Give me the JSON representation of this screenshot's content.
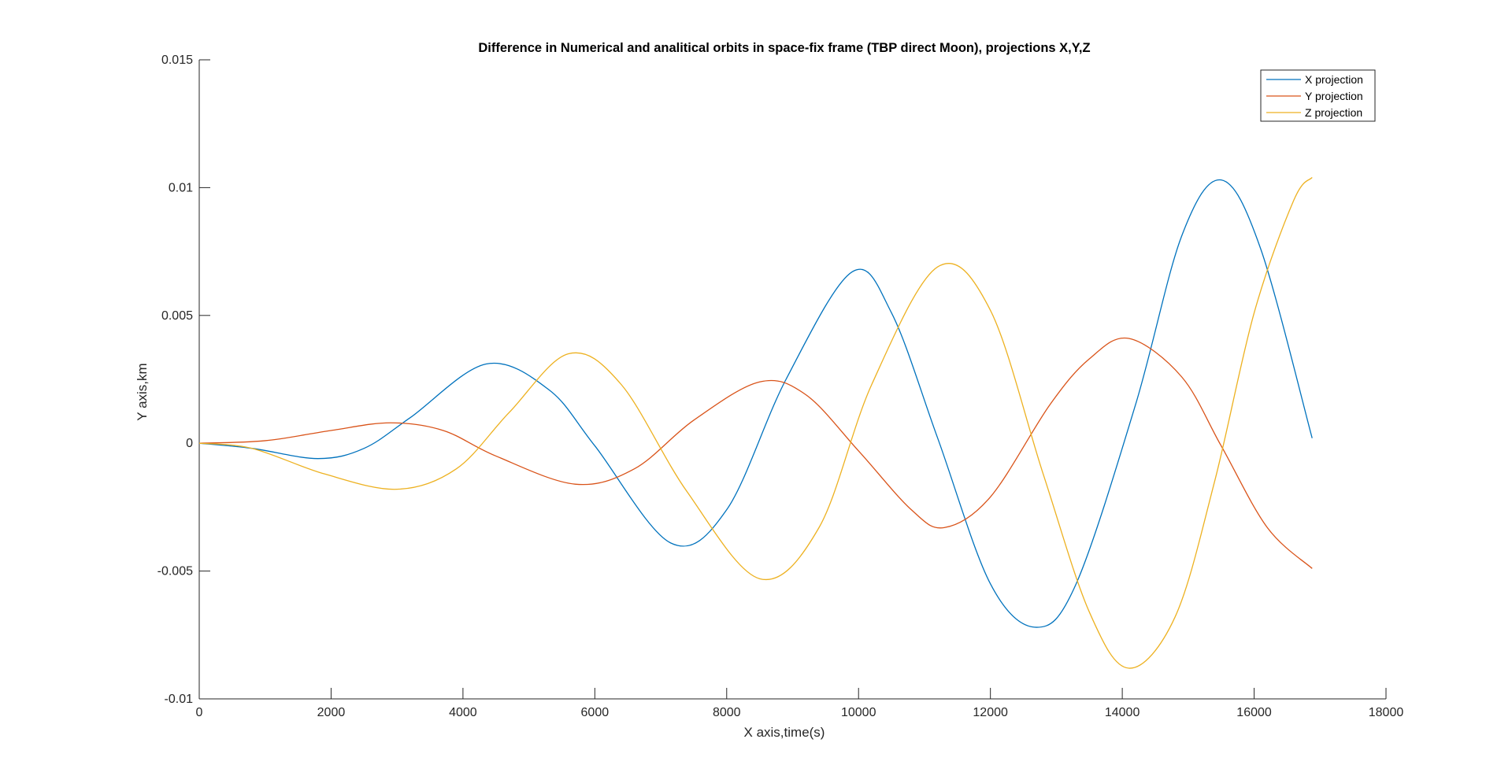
{
  "chart_data": {
    "type": "line",
    "title": "Difference in Numerical and analitical orbits in space-fix frame (TBP direct Moon), projections X,Y,Z",
    "xlabel": "X axis,time(s)",
    "ylabel": "Y axis,km",
    "xlim": [
      0,
      18000
    ],
    "ylim": [
      -0.01,
      0.015
    ],
    "xticks": [
      0,
      2000,
      4000,
      6000,
      8000,
      10000,
      12000,
      14000,
      16000,
      18000
    ],
    "xtick_labels": [
      "0",
      "2000",
      "4000",
      "6000",
      "8000",
      "10000",
      "12000",
      "14000",
      "16000",
      "18000"
    ],
    "yticks": [
      -0.01,
      -0.005,
      0,
      0.005,
      0.01,
      0.015
    ],
    "ytick_labels": [
      "-0.01",
      "-0.005",
      "0",
      "0.005",
      "0.01",
      "0.015"
    ],
    "grid": false,
    "legend_position": "top-right",
    "series": [
      {
        "name": "X projection",
        "color": "#0072BD",
        "x": [
          0,
          800,
          1800,
          2500,
          3200,
          4350,
          5300,
          6000,
          7150,
          8000,
          8900,
          9900,
          10500,
          11200,
          12000,
          12700,
          13300,
          14200,
          14900,
          15500,
          16100,
          16880
        ],
        "y": [
          0,
          -0.0002,
          -0.0006,
          -0.0002,
          0.001,
          0.0031,
          0.0021,
          -0.0001,
          -0.0039,
          -0.0026,
          0.0025,
          0.0067,
          0.0051,
          0.0002,
          -0.0055,
          -0.0072,
          -0.0055,
          0.0015,
          0.0081,
          0.0103,
          0.0076,
          0.0002
        ]
      },
      {
        "name": "Y projection",
        "color": "#D95319",
        "x": [
          0,
          1000,
          2000,
          2900,
          3700,
          4500,
          5700,
          6600,
          7500,
          8500,
          9200,
          10000,
          10800,
          11300,
          12000,
          12900,
          13500,
          14100,
          14900,
          15500,
          16200,
          16880
        ],
        "y": [
          0,
          0.0001,
          0.0005,
          0.0008,
          0.0005,
          -0.0005,
          -0.0016,
          -0.001,
          0.0009,
          0.0024,
          0.0019,
          -0.0003,
          -0.0026,
          -0.0033,
          -0.0021,
          0.0015,
          0.0033,
          0.0041,
          0.0026,
          -0.0001,
          -0.0033,
          -0.0049
        ]
      },
      {
        "name": "Z projection",
        "color": "#EDB120",
        "x": [
          0,
          800,
          1900,
          3000,
          3900,
          4700,
          5600,
          6400,
          7400,
          8500,
          9400,
          10200,
          11200,
          12000,
          12800,
          13500,
          14100,
          14800,
          15400,
          16000,
          16600,
          16880
        ],
        "y": [
          0,
          -0.0002,
          -0.0012,
          -0.0018,
          -0.001,
          0.0012,
          0.0035,
          0.0023,
          -0.0019,
          -0.0053,
          -0.0033,
          0.0023,
          0.0069,
          0.0052,
          -0.0012,
          -0.0066,
          -0.0088,
          -0.0068,
          -0.0015,
          0.0051,
          0.0095,
          0.0104
        ]
      }
    ]
  }
}
